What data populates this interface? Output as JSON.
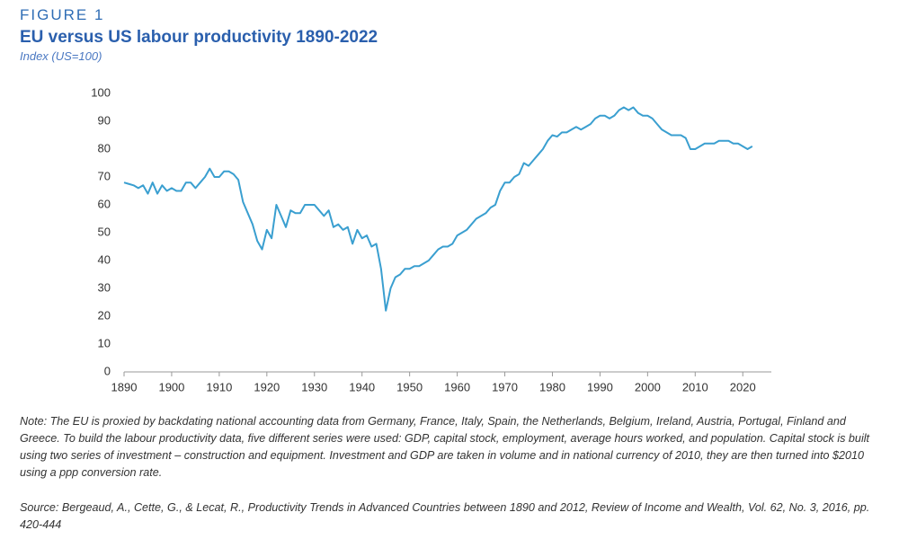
{
  "chart_data": {
    "type": "line",
    "label": "FIGURE 1",
    "title": "EU versus US labour productivity 1890-2022",
    "subtitle": "Index (US=100)",
    "note": "Note: The EU is proxied by backdating national accounting data from Germany, France, Italy, Spain, the Netherlands, Belgium, Ireland, Austria, Portugal, Finland and Greece. To build the labour productivity data, five different series were used: GDP, capital stock, employment, average hours worked, and population. Capital stock is built using two series of investment – construction and equipment. Investment and GDP are taken in volume and in national currency of 2010, they are then turned into $2010 using a ppp conversion rate.",
    "source": "Source: Bergeaud, A., Cette, G., & Lecat, R., Productivity Trends in Advanced Countries between 1890 and 2012, Review of Income and Wealth, Vol. 62, No. 3, 2016, pp. 420-444",
    "color": "#3a9fd0",
    "x": [
      1890,
      1891,
      1892,
      1893,
      1894,
      1895,
      1896,
      1897,
      1898,
      1899,
      1900,
      1901,
      1902,
      1903,
      1904,
      1905,
      1906,
      1907,
      1908,
      1909,
      1910,
      1911,
      1912,
      1913,
      1914,
      1915,
      1916,
      1917,
      1918,
      1919,
      1920,
      1921,
      1922,
      1923,
      1924,
      1925,
      1926,
      1927,
      1928,
      1929,
      1930,
      1931,
      1932,
      1933,
      1934,
      1935,
      1936,
      1937,
      1938,
      1939,
      1940,
      1941,
      1942,
      1943,
      1944,
      1945,
      1946,
      1947,
      1948,
      1949,
      1950,
      1951,
      1952,
      1953,
      1954,
      1955,
      1956,
      1957,
      1958,
      1959,
      1960,
      1961,
      1962,
      1963,
      1964,
      1965,
      1966,
      1967,
      1968,
      1969,
      1970,
      1971,
      1972,
      1973,
      1974,
      1975,
      1976,
      1977,
      1978,
      1979,
      1980,
      1981,
      1982,
      1983,
      1984,
      1985,
      1986,
      1987,
      1988,
      1989,
      1990,
      1991,
      1992,
      1993,
      1994,
      1995,
      1996,
      1997,
      1998,
      1999,
      2000,
      2001,
      2002,
      2003,
      2004,
      2005,
      2006,
      2007,
      2008,
      2009,
      2010,
      2011,
      2012,
      2013,
      2014,
      2015,
      2016,
      2017,
      2018,
      2019,
      2020,
      2021,
      2022
    ],
    "values": [
      68,
      67.5,
      67,
      66,
      67,
      64,
      68,
      64,
      67,
      65,
      66,
      65,
      65,
      68,
      68,
      66,
      68,
      70,
      73,
      70,
      70,
      72,
      72,
      71,
      69,
      61,
      57,
      53,
      47,
      44,
      51,
      48,
      60,
      56,
      52,
      58,
      57,
      57,
      60,
      60,
      60,
      58,
      56,
      58,
      52,
      53,
      51,
      52,
      46,
      51,
      48,
      49,
      45,
      46,
      37,
      22,
      30,
      34,
      35,
      37,
      37,
      38,
      38,
      39,
      40,
      42,
      44,
      45,
      45,
      46,
      49,
      50,
      51,
      53,
      55,
      56,
      57,
      59,
      60,
      65,
      68,
      68,
      70,
      71,
      75,
      74,
      76,
      78,
      80,
      83,
      85,
      84.5,
      86,
      86,
      87,
      88,
      87,
      88,
      89,
      91,
      92,
      92,
      91,
      92,
      94,
      95,
      94,
      95,
      93,
      92,
      92,
      91,
      89,
      87,
      86,
      85,
      85,
      85,
      84,
      80,
      80,
      81,
      82,
      82,
      82,
      83,
      83,
      83,
      82,
      82,
      81,
      80,
      81
    ],
    "xlim": [
      1890,
      2026
    ],
    "xticks": [
      1890,
      1900,
      1910,
      1920,
      1930,
      1940,
      1950,
      1960,
      1970,
      1980,
      1990,
      2000,
      2010,
      2020
    ],
    "ylim": [
      0,
      100
    ],
    "yticks": [
      0,
      10,
      20,
      30,
      40,
      50,
      60,
      70,
      80,
      90,
      100
    ]
  }
}
